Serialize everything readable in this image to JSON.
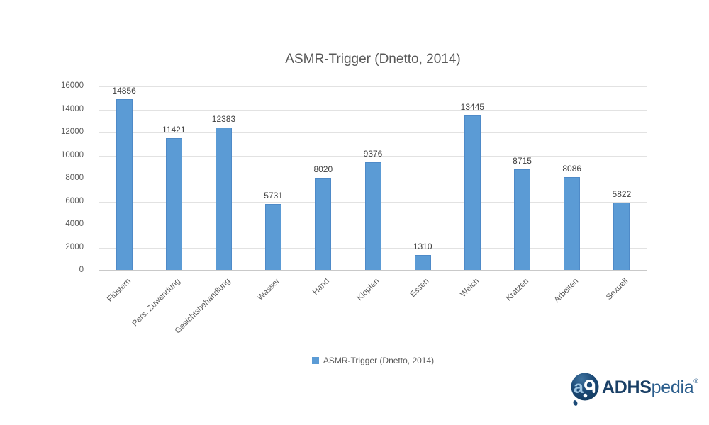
{
  "chart_data": {
    "type": "bar",
    "title": "ASMR-Trigger (Dnetto, 2014)",
    "categories": [
      "Flüstern",
      "Pers. Zuwendung",
      "Gesichtsbehandlung",
      "Wasser",
      "Hand",
      "Klopfen",
      "Essen",
      "Weich",
      "Kratzen",
      "Arbeiten",
      "Sexuell"
    ],
    "values": [
      14856,
      11421,
      12383,
      5731,
      8020,
      9376,
      1310,
      13445,
      8715,
      8086,
      5822
    ],
    "xlabel": "",
    "ylabel": "",
    "ylim": [
      0,
      16000
    ],
    "ytick_step": 2000,
    "grid": "horizontal",
    "data_labels": true,
    "legend": {
      "position": "bottom",
      "label": "ASMR-Trigger (Dnetto, 2014)"
    }
  },
  "colors": {
    "bar": "#5B9BD5",
    "bar_border": "#4E8AC8",
    "gridline": "#E2E2E2",
    "axis_line": "#C9C9C9",
    "axis_text": "#595959",
    "value_label_text": "#404040",
    "logo_navy": "#1A4066",
    "logo_blue": "#2A5D8C"
  },
  "logo": {
    "brand_bold": "ADHS",
    "brand_light": "pedia",
    "registered_mark": "®"
  }
}
